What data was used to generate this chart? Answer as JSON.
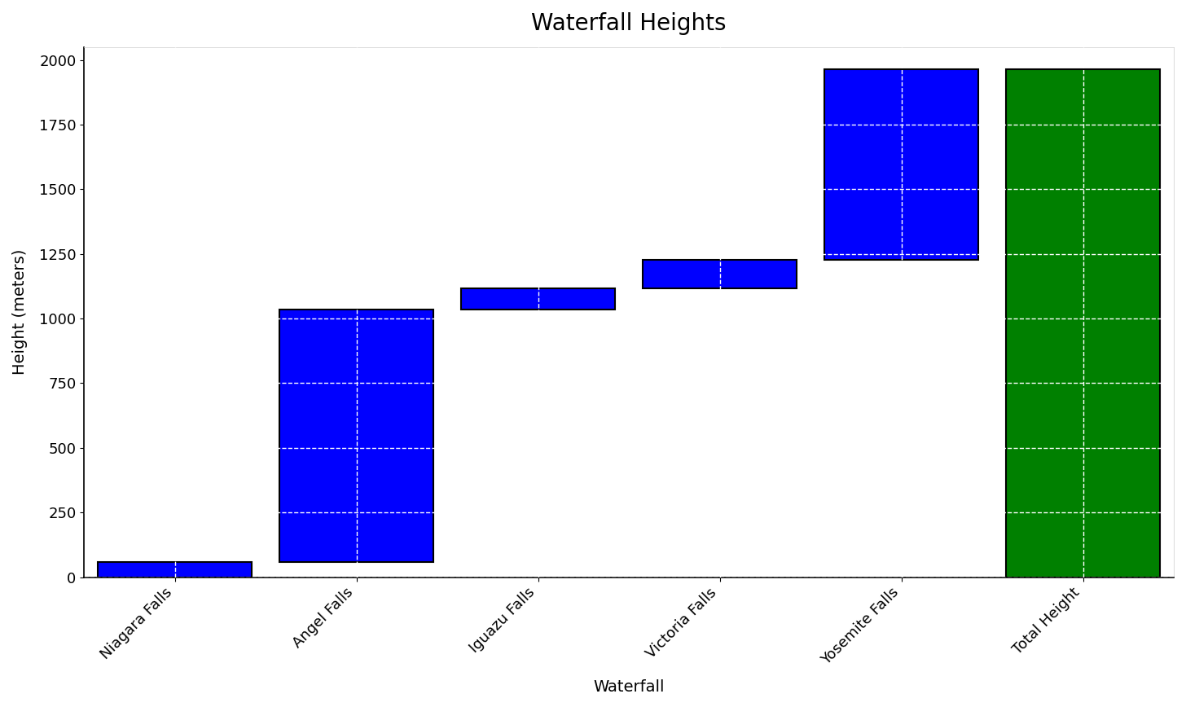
{
  "title": "Waterfall Heights",
  "xlabel": "Waterfall",
  "ylabel": "Height (meters)",
  "categories": [
    "Niagara Falls",
    "Angel Falls",
    "Iguazu Falls",
    "Victoria Falls",
    "Yosemite Falls",
    "Total Height"
  ],
  "heights": [
    57,
    979,
    82,
    108,
    739,
    1965
  ],
  "bar_colors": [
    "#0000FF",
    "#0000FF",
    "#0000FF",
    "#0000FF",
    "#0000FF",
    "#008000"
  ],
  "total_index": 5,
  "background_color": "#ffffff",
  "grid_color": "#ffffff",
  "grid_linestyle": "--",
  "title_fontsize": 20,
  "label_fontsize": 14,
  "tick_fontsize": 13,
  "ylim": [
    0,
    2050
  ],
  "yticks": [
    0,
    250,
    500,
    750,
    1000,
    1250,
    1500,
    1750,
    2000
  ],
  "bar_width": 0.85,
  "edgecolor": "#000000",
  "linewidth": 1.5
}
